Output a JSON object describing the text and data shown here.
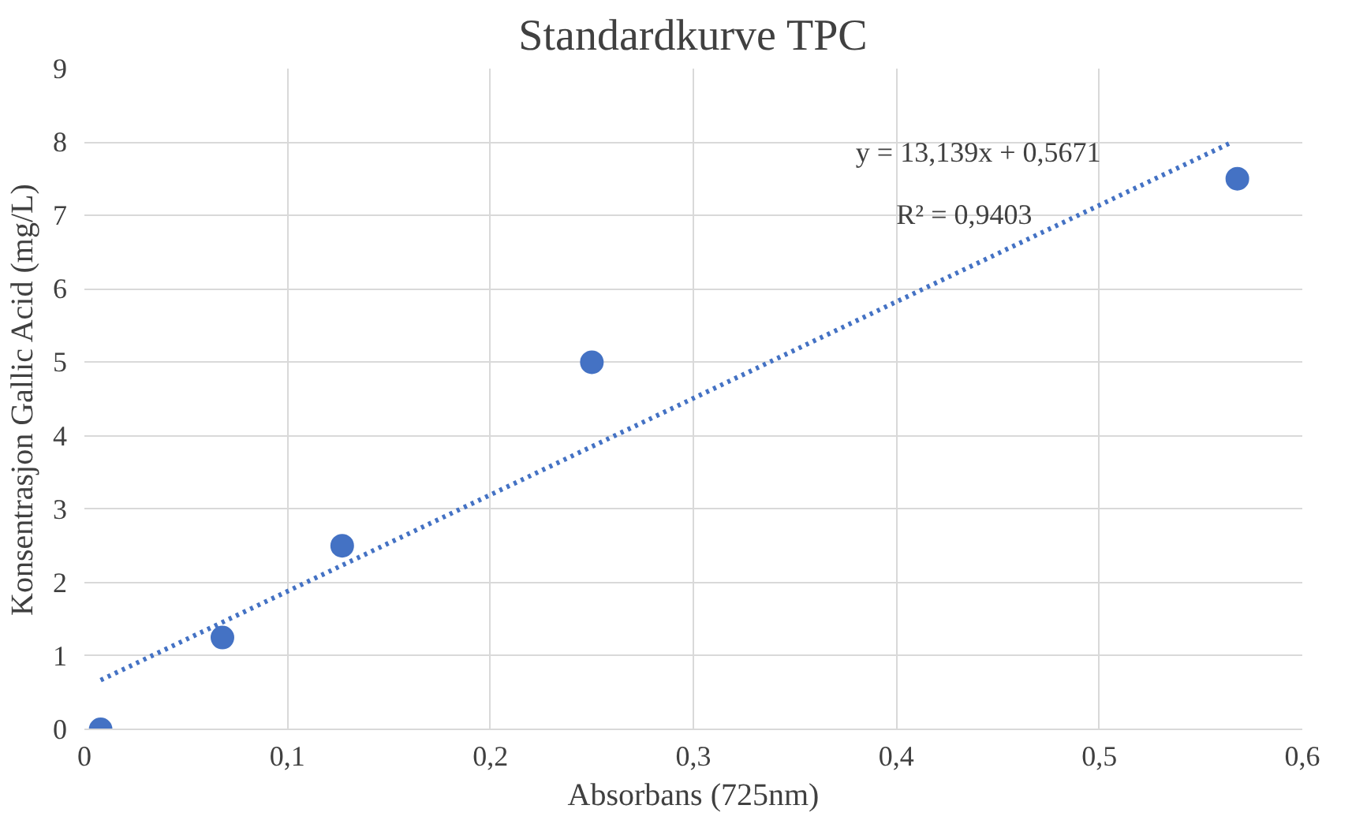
{
  "chart_data": {
    "type": "scatter",
    "title": "Standardkurve TPC",
    "xlabel": "Absorbans (725nm)",
    "ylabel": "Konsentrasjon Gallic Acid (mg/L)",
    "xlim": [
      0,
      0.6
    ],
    "ylim": [
      0,
      9
    ],
    "xticks": [
      0,
      {
        "value": 0.1,
        "label": "0,1"
      },
      {
        "value": 0.2,
        "label": "0,2"
      },
      {
        "value": 0.3,
        "label": "0,3"
      },
      {
        "value": 0.4,
        "label": "0,4"
      },
      {
        "value": 0.5,
        "label": "0,5"
      },
      {
        "value": 0.6,
        "label": "0,6"
      }
    ],
    "yticks": [
      0,
      1,
      2,
      3,
      4,
      5,
      6,
      7,
      8,
      9
    ],
    "grid": true,
    "marker": "circle",
    "series": [
      {
        "color": "#4472c4",
        "x": [
          0.008,
          0.068,
          0.127,
          0.25,
          0.568
        ],
        "values": [
          0,
          1.25,
          2.5,
          5,
          7.5
        ]
      },
      {
        "type": "line",
        "color": "#4472c4",
        "line_style": "dotted",
        "marker": "none",
        "x": [
          0.008,
          0.564
        ],
        "values": [
          0.67,
          7.98
        ]
      }
    ],
    "annotations": [
      "y = 13,139x + 0,5671",
      "R² = 0,9403"
    ]
  }
}
